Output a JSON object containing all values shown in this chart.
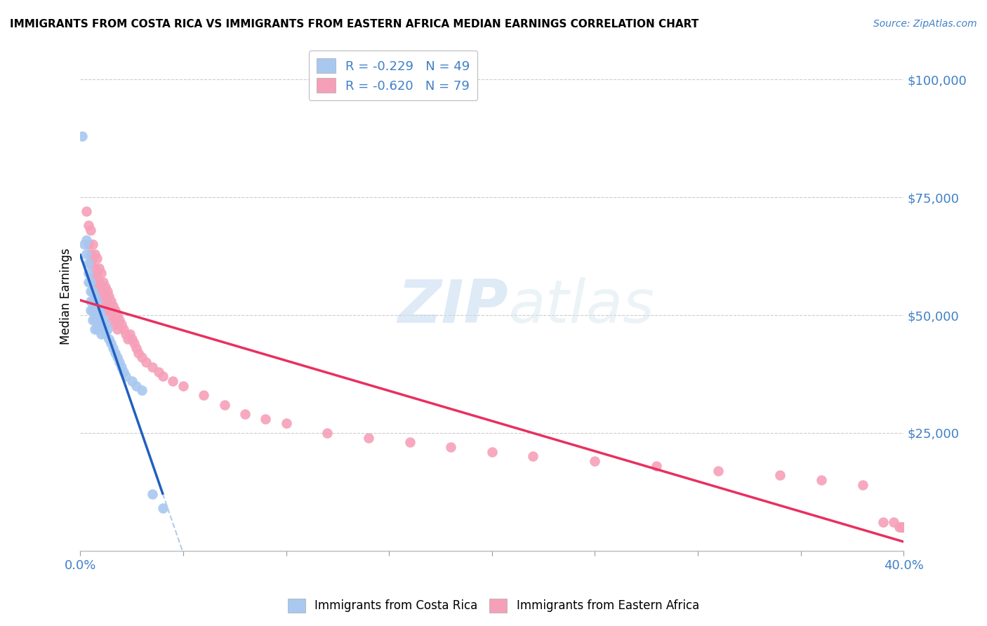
{
  "title": "IMMIGRANTS FROM COSTA RICA VS IMMIGRANTS FROM EASTERN AFRICA MEDIAN EARNINGS CORRELATION CHART",
  "source": "Source: ZipAtlas.com",
  "ylabel": "Median Earnings",
  "yticks": [
    0,
    25000,
    50000,
    75000,
    100000
  ],
  "ytick_labels": [
    "",
    "$25,000",
    "$50,000",
    "$75,000",
    "$100,000"
  ],
  "xlim": [
    0.0,
    0.4
  ],
  "ylim": [
    0,
    108000
  ],
  "costa_rica_color": "#A8C8F0",
  "eastern_africa_color": "#F5A0B8",
  "costa_rica_line_color": "#2060C0",
  "eastern_africa_line_color": "#E83060",
  "dashed_line_color": "#B0CDE8",
  "legend_r1": "R = -0.229",
  "legend_n1": "N = 49",
  "legend_r2": "R = -0.620",
  "legend_n2": "N = 79",
  "watermark_zip": "ZIP",
  "watermark_atlas": "atlas",
  "background_color": "#ffffff",
  "costa_rica_x": [
    0.001,
    0.002,
    0.003,
    0.003,
    0.004,
    0.004,
    0.004,
    0.005,
    0.005,
    0.005,
    0.005,
    0.006,
    0.006,
    0.006,
    0.006,
    0.007,
    0.007,
    0.007,
    0.007,
    0.007,
    0.008,
    0.008,
    0.008,
    0.008,
    0.009,
    0.009,
    0.009,
    0.01,
    0.01,
    0.01,
    0.011,
    0.011,
    0.012,
    0.012,
    0.013,
    0.014,
    0.015,
    0.016,
    0.017,
    0.018,
    0.019,
    0.02,
    0.021,
    0.022,
    0.025,
    0.027,
    0.03,
    0.035,
    0.04
  ],
  "costa_rica_y": [
    88000,
    65000,
    66000,
    63000,
    61000,
    59000,
    57000,
    57000,
    55000,
    53000,
    51000,
    55000,
    53000,
    51000,
    49000,
    54000,
    52000,
    50000,
    49000,
    47000,
    53000,
    51000,
    49000,
    47000,
    51000,
    49000,
    47000,
    50000,
    48000,
    46000,
    49000,
    47000,
    48000,
    46000,
    47000,
    45000,
    44000,
    43000,
    42000,
    41000,
    40000,
    39000,
    38000,
    37000,
    36000,
    35000,
    34000,
    12000,
    9000
  ],
  "eastern_africa_x": [
    0.003,
    0.004,
    0.004,
    0.005,
    0.005,
    0.005,
    0.006,
    0.006,
    0.006,
    0.007,
    0.007,
    0.007,
    0.008,
    0.008,
    0.008,
    0.008,
    0.009,
    0.009,
    0.009,
    0.01,
    0.01,
    0.01,
    0.011,
    0.011,
    0.012,
    0.012,
    0.012,
    0.013,
    0.013,
    0.014,
    0.014,
    0.015,
    0.015,
    0.016,
    0.016,
    0.017,
    0.017,
    0.018,
    0.018,
    0.019,
    0.02,
    0.021,
    0.022,
    0.023,
    0.024,
    0.025,
    0.026,
    0.027,
    0.028,
    0.03,
    0.032,
    0.035,
    0.038,
    0.04,
    0.045,
    0.05,
    0.06,
    0.07,
    0.08,
    0.09,
    0.1,
    0.12,
    0.14,
    0.16,
    0.18,
    0.2,
    0.22,
    0.25,
    0.28,
    0.31,
    0.34,
    0.36,
    0.38,
    0.39,
    0.395,
    0.398,
    0.399,
    0.399,
    0.4
  ],
  "eastern_africa_y": [
    72000,
    69000,
    65000,
    68000,
    63000,
    61000,
    65000,
    62000,
    58000,
    63000,
    60000,
    57000,
    62000,
    59000,
    56000,
    54000,
    60000,
    57000,
    54000,
    59000,
    56000,
    53000,
    57000,
    54000,
    56000,
    53000,
    51000,
    55000,
    52000,
    54000,
    51000,
    53000,
    50000,
    52000,
    49000,
    51000,
    48000,
    50000,
    47000,
    49000,
    48000,
    47000,
    46000,
    45000,
    46000,
    45000,
    44000,
    43000,
    42000,
    41000,
    40000,
    39000,
    38000,
    37000,
    36000,
    35000,
    33000,
    31000,
    29000,
    28000,
    27000,
    25000,
    24000,
    23000,
    22000,
    21000,
    20000,
    19000,
    18000,
    17000,
    16000,
    15000,
    14000,
    6000,
    6000,
    5000,
    5000,
    5000,
    5000
  ]
}
